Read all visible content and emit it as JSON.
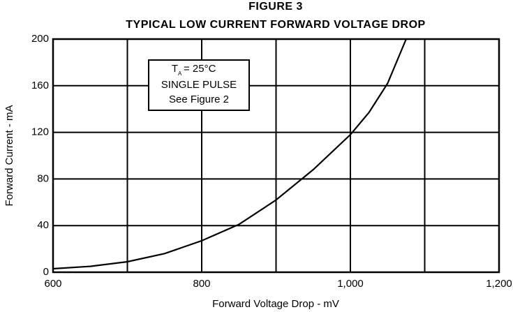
{
  "chart_data": {
    "type": "line",
    "title": "FIGURE 3",
    "subtitle": "TYPICAL LOW CURRENT FORWARD VOLTAGE DROP",
    "x_label": "Forward Voltage Drop - mV",
    "y_label": "Forward Current - mA",
    "x": [
      600,
      650,
      700,
      750,
      800,
      850,
      900,
      950,
      1000,
      1025,
      1050,
      1075
    ],
    "values": [
      3,
      5,
      9,
      16,
      27,
      41,
      62,
      88,
      118,
      137,
      162,
      200
    ],
    "color": "#000000",
    "xlim": [
      600,
      1200
    ],
    "ylim": [
      0,
      200
    ],
    "xticks": [
      600,
      800,
      {
        "value": 1000,
        "label": "1,000"
      },
      {
        "value": 1200,
        "label": "1,200"
      }
    ],
    "xminor": [
      700,
      900,
      1100
    ],
    "yticks": [
      0,
      40,
      80,
      120,
      160,
      200
    ],
    "grid": true,
    "annotation_temp": {
      "symbol": "T",
      "subscript": "A",
      "value": "= 25°C"
    },
    "annotation": [
      "SINGLE PULSE",
      "See Figure 2"
    ]
  }
}
